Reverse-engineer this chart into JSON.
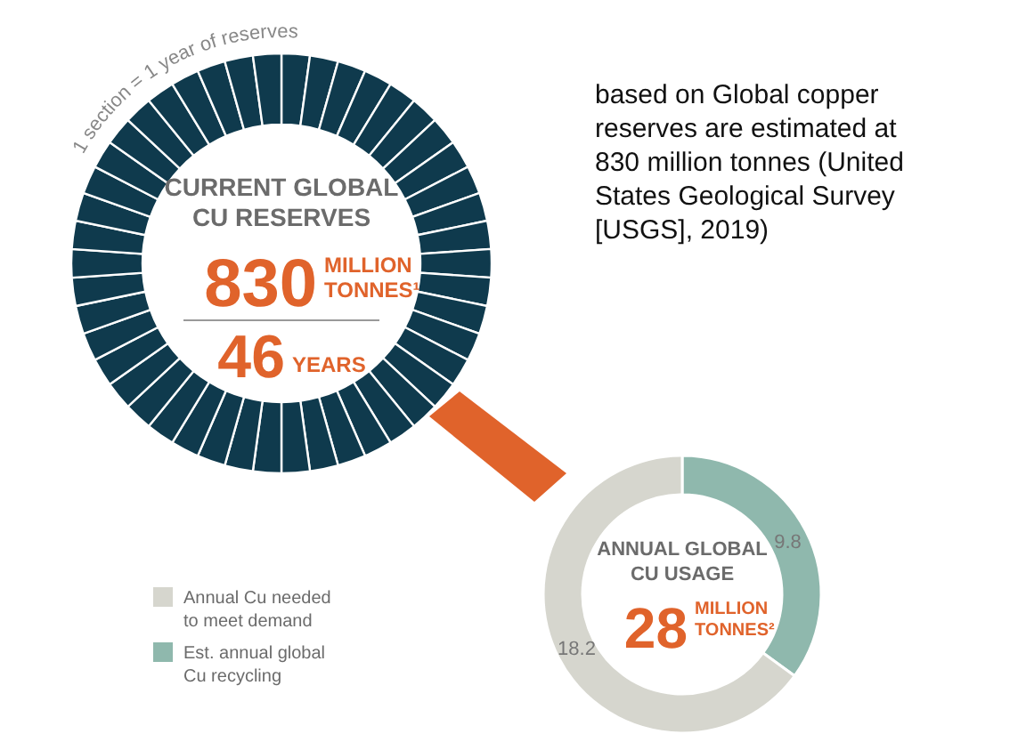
{
  "chart_data": [
    {
      "type": "other",
      "title": "CURRENT GLOBAL CU RESERVES",
      "annotations": [
        "830",
        "MILLION TONNES¹",
        "46",
        "YEARS",
        "1 section = 1 year of reserves",
        "based on Global copper reserves are estimated at 830 million tonnes (United States Geological Survey [USGS], 2019)"
      ]
    },
    {
      "type": "donut",
      "title": "ANNUAL GLOBAL CU USAGE",
      "annotations": [
        "28",
        "MILLION TONNES²"
      ],
      "categories": [
        "Est. annual global Cu recycling",
        "Annual Cu needed to meet demand"
      ],
      "values": [
        9.8,
        18.2
      ],
      "colors": [
        "#8fb8ad",
        "#d6d6ce"
      ],
      "data_labels": true,
      "legend": "left"
    }
  ]
}
